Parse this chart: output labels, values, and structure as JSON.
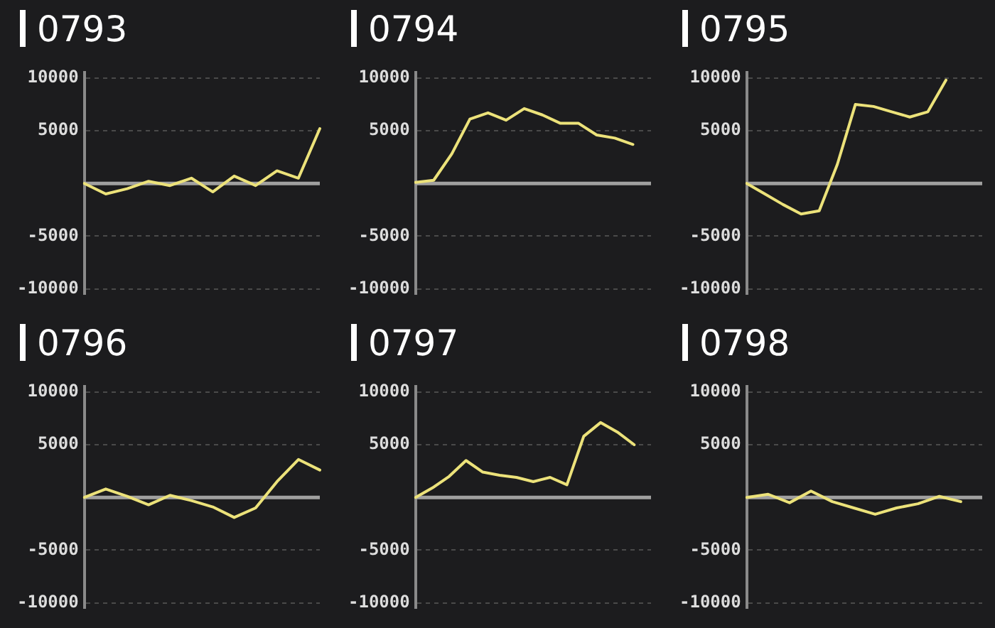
{
  "chart_data": [
    {
      "type": "line",
      "title": "0793",
      "categories": [
        null,
        null,
        null,
        null,
        null,
        null,
        null,
        null,
        null,
        null,
        null,
        null
      ],
      "series": [
        {
          "color": "#ece27a",
          "values": [
            0,
            -1000,
            -500,
            200,
            -200,
            500,
            -800,
            700,
            -200,
            1200,
            500,
            5200
          ]
        }
      ],
      "ylim": [
        -10500,
        10500
      ],
      "yticks": [
        -10000,
        -5000,
        5000,
        10000
      ],
      "ref_lines": [
        {
          "axis": "y",
          "value": 0,
          "color": "#a0a0a0"
        }
      ],
      "grid": "y",
      "tick_labels": "y",
      "marker": "none",
      "line_style": "solid"
    },
    {
      "type": "line",
      "title": "0794",
      "categories": [
        null,
        null,
        null,
        null,
        null,
        null,
        null,
        null,
        null,
        null,
        null,
        null,
        null,
        null
      ],
      "series": [
        {
          "color": "#ece27a",
          "values": [
            100,
            300,
            2800,
            6100,
            6700,
            6000,
            7100,
            6500,
            5700,
            5700,
            4600,
            4300,
            3700,
            null
          ]
        }
      ],
      "ylim": [
        -10500,
        10500
      ],
      "yticks": [
        -10000,
        -5000,
        5000,
        10000
      ],
      "ref_lines": [
        {
          "axis": "y",
          "value": 0,
          "color": "#a0a0a0"
        }
      ],
      "grid": "y",
      "tick_labels": "y",
      "marker": "none",
      "line_style": "solid"
    },
    {
      "type": "line",
      "title": "0795",
      "categories": [
        null,
        null,
        null,
        null,
        null,
        null,
        null,
        null,
        null,
        null,
        null,
        null,
        null,
        null
      ],
      "series": [
        {
          "color": "#ece27a",
          "values": [
            0,
            -1000,
            -2000,
            -2900,
            -2600,
            1800,
            7500,
            7300,
            6800,
            6300,
            6800,
            9800,
            null,
            null
          ]
        }
      ],
      "ylim": [
        -10500,
        10500
      ],
      "yticks": [
        -10000,
        -5000,
        5000,
        10000
      ],
      "ref_lines": [
        {
          "axis": "y",
          "value": 0,
          "color": "#a0a0a0"
        }
      ],
      "grid": "y",
      "tick_labels": "y",
      "marker": "none",
      "line_style": "solid"
    },
    {
      "type": "line",
      "title": "0796",
      "categories": [
        null,
        null,
        null,
        null,
        null,
        null,
        null,
        null,
        null,
        null,
        null,
        null
      ],
      "series": [
        {
          "color": "#ece27a",
          "values": [
            0,
            800,
            100,
            -700,
            200,
            -300,
            -900,
            -1900,
            -1000,
            1500,
            3600,
            2600
          ]
        }
      ],
      "ylim": [
        -10500,
        10500
      ],
      "yticks": [
        -10000,
        -5000,
        5000,
        10000
      ],
      "ref_lines": [
        {
          "axis": "y",
          "value": 0,
          "color": "#a0a0a0"
        }
      ],
      "grid": "y",
      "tick_labels": "y",
      "marker": "none",
      "line_style": "solid"
    },
    {
      "type": "line",
      "title": "0797",
      "categories": [
        null,
        null,
        null,
        null,
        null,
        null,
        null,
        null,
        null,
        null,
        null,
        null,
        null,
        null,
        null
      ],
      "series": [
        {
          "color": "#ece27a",
          "values": [
            0,
            900,
            2000,
            3500,
            2400,
            2100,
            1900,
            1500,
            1900,
            1200,
            5800,
            7100,
            6200,
            5000,
            null
          ]
        }
      ],
      "ylim": [
        -10500,
        10500
      ],
      "yticks": [
        -10000,
        -5000,
        5000,
        10000
      ],
      "ref_lines": [
        {
          "axis": "y",
          "value": 0,
          "color": "#a0a0a0"
        }
      ],
      "grid": "y",
      "tick_labels": "y",
      "marker": "none",
      "line_style": "solid"
    },
    {
      "type": "line",
      "title": "0798",
      "categories": [
        null,
        null,
        null,
        null,
        null,
        null,
        null,
        null,
        null,
        null,
        null,
        null
      ],
      "series": [
        {
          "color": "#ece27a",
          "values": [
            0,
            300,
            -500,
            600,
            -400,
            -1000,
            -1600,
            -1000,
            -600,
            100,
            -400,
            null
          ]
        }
      ],
      "ylim": [
        -10500,
        10500
      ],
      "yticks": [
        -10000,
        -5000,
        5000,
        10000
      ],
      "ref_lines": [
        {
          "axis": "y",
          "value": 0,
          "color": "#a0a0a0"
        }
      ],
      "grid": "y",
      "tick_labels": "y",
      "marker": "none",
      "line_style": "solid"
    }
  ]
}
